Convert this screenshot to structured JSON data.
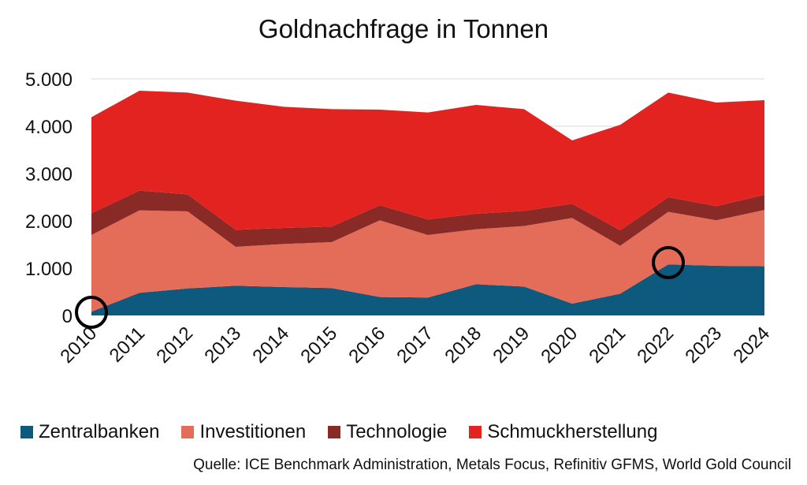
{
  "chart_data": {
    "type": "area",
    "stacked": true,
    "title": "Goldnachfrage in Tonnen",
    "xlabel": "",
    "ylabel": "",
    "categories": [
      "2010",
      "2011",
      "2012",
      "2013",
      "2014",
      "2015",
      "2016",
      "2017",
      "2018",
      "2019",
      "2020",
      "2021",
      "2022",
      "2023",
      "2024"
    ],
    "ylim": [
      0,
      5000
    ],
    "yticks": [
      "0",
      "1.000",
      "2.000",
      "3.000",
      "4.000",
      "5.000"
    ],
    "grid": true,
    "legend_position": "bottom",
    "series": [
      {
        "name": "Zentralbanken",
        "color": "#0e5a7e",
        "values": [
          80,
          480,
          570,
          630,
          600,
          580,
          390,
          380,
          660,
          610,
          250,
          460,
          1080,
          1050,
          1040
        ]
      },
      {
        "name": "Investitionen",
        "color": "#e46d5a",
        "values": [
          1620,
          1740,
          1630,
          820,
          910,
          970,
          1620,
          1320,
          1160,
          1280,
          1810,
          1010,
          1110,
          960,
          1190
        ]
      },
      {
        "name": "Technologie",
        "color": "#8a2a27",
        "values": [
          460,
          420,
          360,
          360,
          340,
          330,
          320,
          330,
          330,
          320,
          300,
          330,
          310,
          300,
          320
        ]
      },
      {
        "name": "Schmuckherstellung",
        "color": "#e32320",
        "values": [
          2030,
          2110,
          2150,
          2730,
          2560,
          2480,
          2020,
          2260,
          2300,
          2150,
          1340,
          2230,
          2210,
          2190,
          2000
        ]
      }
    ],
    "markers": [
      {
        "category": "2010",
        "value": 0
      },
      {
        "category": "2022",
        "value": 1050
      }
    ]
  },
  "source": "Quelle: ICE Benchmark Administration, Metals Focus, Refinitiv GFMS, World Gold Council"
}
